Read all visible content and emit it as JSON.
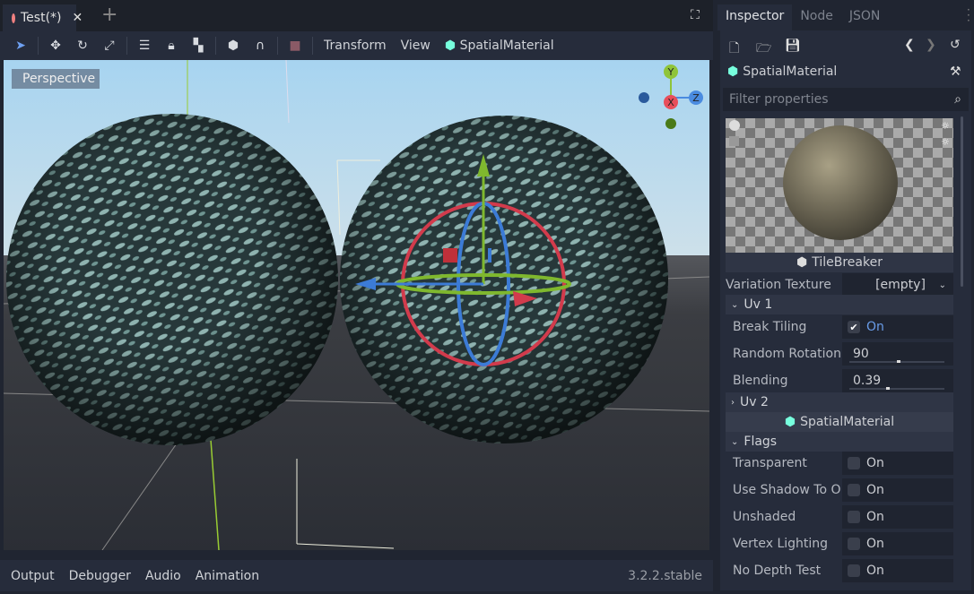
{
  "editor": {
    "tab": "Test(*)",
    "add_tab": "+",
    "menus": [
      "Transform",
      "View",
      "SpatialMaterial"
    ],
    "viewport_label": "Perspective",
    "version": "3.2.2.stable"
  },
  "gizmo_axes": {
    "y": "Y",
    "x": "X",
    "z": "Z"
  },
  "bottom_tabs": [
    "Output",
    "Debugger",
    "Audio",
    "Animation"
  ],
  "inspector": {
    "tabs": [
      "Inspector",
      "Node",
      "JSON"
    ],
    "resource": "SpatialMaterial",
    "filter_placeholder": "Filter properties",
    "preview_label": "TileBreaker",
    "variation_texture": {
      "label": "Variation Texture",
      "value": "[empty]"
    },
    "uv1": {
      "label": "Uv 1",
      "break_tiling": {
        "label": "Break Tiling",
        "value": "On",
        "checked": true
      },
      "random_rotation": {
        "label": "Random Rotation",
        "value": "90",
        "fraction": 0.5
      },
      "blending": {
        "label": "Blending",
        "value": "0.39",
        "fraction": 0.39
      }
    },
    "uv2": {
      "label": "Uv 2"
    },
    "sub_resource": "SpatialMaterial",
    "flags": {
      "label": "Flags",
      "items": [
        {
          "label": "Transparent",
          "value": "On",
          "checked": false
        },
        {
          "label": "Use Shadow To O",
          "value": "On",
          "checked": false
        },
        {
          "label": "Unshaded",
          "value": "On",
          "checked": false
        },
        {
          "label": "Vertex Lighting",
          "value": "On",
          "checked": false
        },
        {
          "label": "No Depth Test",
          "value": "On",
          "checked": false
        }
      ]
    }
  },
  "colors": {
    "accent": "#699ce8",
    "x_axis": "#e84e5b",
    "y_axis": "#8fc43a",
    "z_axis": "#4a8be0"
  }
}
